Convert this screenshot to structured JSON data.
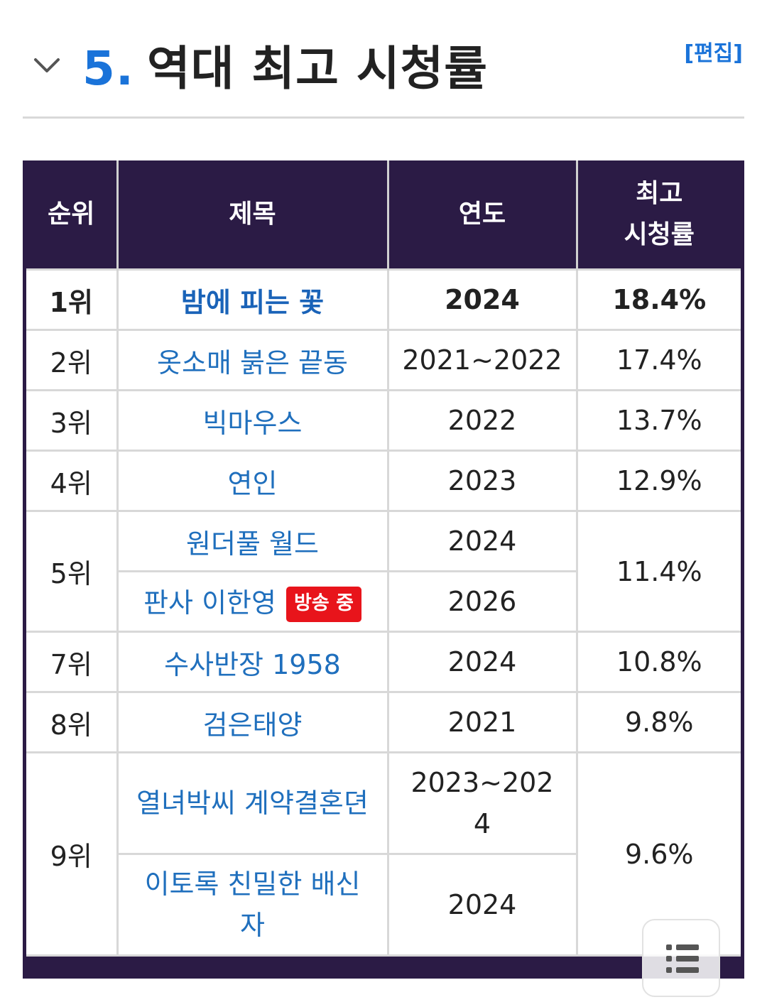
{
  "section": {
    "number": "5.",
    "title": "역대 최고 시청률",
    "edit_label": "[편집]"
  },
  "table": {
    "headers": {
      "rank": "순위",
      "title": "제목",
      "year": "연도",
      "rating_line1": "최고",
      "rating_line2": "시청률"
    },
    "rows": [
      {
        "rank": "1위",
        "title": "밤에 피는 꽃",
        "year": "2024",
        "rating": "18.4%"
      },
      {
        "rank": "2위",
        "title": "옷소매 붉은 끝동",
        "year": "2021~2022",
        "rating": "17.4%"
      },
      {
        "rank": "3위",
        "title": "빅마우스",
        "year": "2022",
        "rating": "13.7%"
      },
      {
        "rank": "4위",
        "title": "연인",
        "year": "2023",
        "rating": "12.9%"
      },
      {
        "rank": "5위",
        "title": "원더풀 월드",
        "year": "2024",
        "rating": "11.4%"
      },
      {
        "title": "판사 이한영",
        "badge": "방송 중",
        "year": "2026"
      },
      {
        "rank": "7위",
        "title": "수사반장 1958",
        "year": "2024",
        "rating": "10.8%"
      },
      {
        "rank": "8위",
        "title": "검은태양",
        "year": "2021",
        "rating": "9.8%"
      },
      {
        "rank": "9위",
        "title": "열녀박씨 계약결혼뎐",
        "year_line1": "2023~202",
        "year_line2": "4",
        "rating": "9.6%"
      },
      {
        "title_line1": "이토록 친밀한 배신",
        "title_line2": "자",
        "year": "2024"
      }
    ]
  },
  "toc_icon": "list-icon"
}
